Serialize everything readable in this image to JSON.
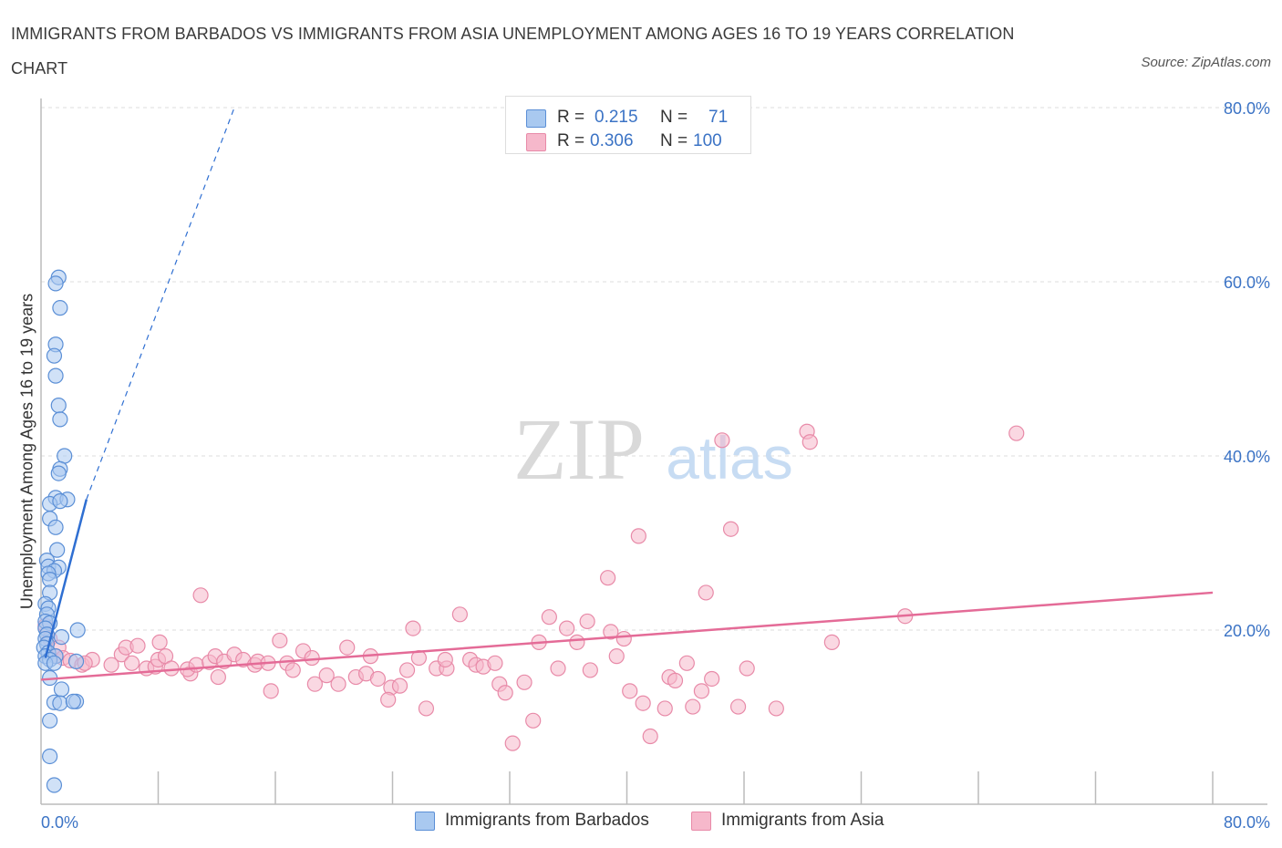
{
  "title": "IMMIGRANTS FROM BARBADOS VS IMMIGRANTS FROM ASIA UNEMPLOYMENT AMONG AGES 16 TO 19 YEARS CORRELATION CHART",
  "source": "Source: ZipAtlas.com",
  "watermark": {
    "zip": "ZIP",
    "atlas": "atlas"
  },
  "legend_top": {
    "series1": {
      "r_label": "R =",
      "r_value": "0.215",
      "n_label": "N =",
      "n_value": "71"
    },
    "series2": {
      "r_label": "R =",
      "r_value": "0.306",
      "n_label": "N =",
      "n_value": "100"
    }
  },
  "colors": {
    "barbados_fill": "#a9c9f0",
    "barbados_stroke": "#5b8fd6",
    "barbados_line": "#2f6fd2",
    "asia_fill": "#f6b8cb",
    "asia_stroke": "#e88aa8",
    "asia_line": "#e46b97",
    "axis_text": "#3b73c5",
    "grid": "#dddddd"
  },
  "chart_data": {
    "type": "scatter",
    "xlabel": "",
    "ylabel": "Unemployment Among Ages 16 to 19 years",
    "xlim": [
      0,
      80
    ],
    "ylim": [
      0,
      80
    ],
    "x_tick_labels": [
      "0.0%",
      "80.0%"
    ],
    "y_tick_labels": [
      "20.0%",
      "40.0%",
      "60.0%",
      "80.0%"
    ],
    "y_ticks": [
      20,
      40,
      60,
      80
    ],
    "grid": true,
    "legend": "bottom",
    "series": [
      {
        "name": "Immigrants from Barbados",
        "R": 0.215,
        "N": 71,
        "trend": {
          "x": [
            0.3,
            3.1
          ],
          "y": [
            16.8,
            35.0
          ],
          "dashed_to": [
            13.2,
            80.0
          ]
        },
        "points": [
          [
            1.2,
            60.5
          ],
          [
            1.0,
            59.8
          ],
          [
            1.3,
            57.0
          ],
          [
            1.0,
            52.8
          ],
          [
            0.9,
            51.5
          ],
          [
            1.0,
            49.2
          ],
          [
            1.2,
            45.8
          ],
          [
            1.3,
            44.2
          ],
          [
            1.6,
            40.0
          ],
          [
            1.3,
            38.5
          ],
          [
            1.2,
            38.0
          ],
          [
            1.0,
            35.2
          ],
          [
            1.8,
            35.0
          ],
          [
            0.6,
            34.5
          ],
          [
            1.3,
            34.8
          ],
          [
            0.6,
            32.8
          ],
          [
            1.0,
            31.8
          ],
          [
            1.1,
            29.2
          ],
          [
            0.4,
            28.0
          ],
          [
            0.5,
            27.3
          ],
          [
            1.2,
            27.2
          ],
          [
            0.9,
            26.8
          ],
          [
            0.5,
            26.5
          ],
          [
            0.6,
            25.8
          ],
          [
            0.6,
            24.3
          ],
          [
            0.3,
            23.0
          ],
          [
            0.5,
            22.5
          ],
          [
            0.4,
            21.8
          ],
          [
            0.3,
            21.0
          ],
          [
            0.6,
            20.8
          ],
          [
            0.3,
            20.2
          ],
          [
            2.5,
            20.0
          ],
          [
            0.4,
            19.5
          ],
          [
            0.3,
            19.0
          ],
          [
            1.4,
            19.2
          ],
          [
            0.4,
            18.4
          ],
          [
            0.2,
            18.0
          ],
          [
            0.5,
            17.4
          ],
          [
            0.3,
            17.0
          ],
          [
            1.0,
            17.0
          ],
          [
            0.6,
            16.6
          ],
          [
            0.3,
            16.2
          ],
          [
            0.9,
            16.2
          ],
          [
            2.4,
            16.4
          ],
          [
            0.6,
            14.5
          ],
          [
            1.4,
            13.2
          ],
          [
            0.9,
            11.7
          ],
          [
            1.3,
            11.6
          ],
          [
            2.4,
            11.8
          ],
          [
            2.2,
            11.8
          ],
          [
            0.6,
            9.6
          ],
          [
            0.6,
            5.5
          ],
          [
            0.9,
            2.2
          ]
        ]
      },
      {
        "name": "Immigrants from Asia",
        "R": 0.306,
        "N": 100,
        "trend": {
          "x": [
            0.0,
            80.0
          ],
          "y": [
            14.3,
            24.3
          ]
        },
        "points": [
          [
            0.3,
            20.5
          ],
          [
            0.6,
            19.0
          ],
          [
            1.2,
            18.0
          ],
          [
            1.0,
            17.0
          ],
          [
            1.5,
            16.8
          ],
          [
            2.0,
            16.5
          ],
          [
            2.8,
            16.0
          ],
          [
            3.5,
            16.6
          ],
          [
            3.0,
            16.2
          ],
          [
            4.8,
            16.0
          ],
          [
            5.5,
            17.2
          ],
          [
            5.8,
            18.0
          ],
          [
            6.2,
            16.2
          ],
          [
            6.6,
            18.2
          ],
          [
            7.2,
            15.6
          ],
          [
            7.8,
            15.8
          ],
          [
            8.0,
            16.6
          ],
          [
            8.1,
            18.6
          ],
          [
            8.5,
            17.0
          ],
          [
            8.9,
            15.6
          ],
          [
            10.2,
            15.0
          ],
          [
            10.0,
            15.5
          ],
          [
            10.6,
            16.0
          ],
          [
            10.9,
            24.0
          ],
          [
            11.5,
            16.3
          ],
          [
            11.9,
            17.0
          ],
          [
            12.1,
            14.6
          ],
          [
            12.5,
            16.4
          ],
          [
            13.2,
            17.2
          ],
          [
            13.8,
            16.6
          ],
          [
            14.6,
            16.0
          ],
          [
            14.8,
            16.4
          ],
          [
            15.5,
            16.2
          ],
          [
            15.7,
            13.0
          ],
          [
            16.3,
            18.8
          ],
          [
            16.8,
            16.2
          ],
          [
            17.2,
            15.4
          ],
          [
            17.9,
            17.6
          ],
          [
            18.5,
            16.8
          ],
          [
            18.7,
            13.8
          ],
          [
            19.5,
            14.8
          ],
          [
            20.9,
            18.0
          ],
          [
            20.3,
            13.8
          ],
          [
            21.5,
            14.6
          ],
          [
            22.2,
            15.0
          ],
          [
            22.5,
            17.0
          ],
          [
            23.0,
            14.4
          ],
          [
            23.9,
            13.4
          ],
          [
            23.7,
            12.0
          ],
          [
            24.5,
            13.6
          ],
          [
            25.0,
            15.4
          ],
          [
            25.4,
            20.2
          ],
          [
            25.8,
            16.8
          ],
          [
            26.3,
            11.0
          ],
          [
            27.0,
            15.6
          ],
          [
            27.7,
            15.6
          ],
          [
            27.6,
            16.6
          ],
          [
            28.6,
            21.8
          ],
          [
            29.3,
            16.6
          ],
          [
            29.7,
            16.0
          ],
          [
            30.2,
            15.8
          ],
          [
            31.0,
            16.2
          ],
          [
            31.3,
            13.8
          ],
          [
            31.7,
            12.8
          ],
          [
            32.2,
            7.0
          ],
          [
            33.0,
            14.0
          ],
          [
            33.6,
            9.6
          ],
          [
            34.0,
            18.6
          ],
          [
            34.7,
            21.5
          ],
          [
            35.3,
            15.6
          ],
          [
            35.9,
            20.2
          ],
          [
            36.6,
            18.6
          ],
          [
            37.3,
            21.0
          ],
          [
            37.5,
            15.4
          ],
          [
            38.7,
            26.0
          ],
          [
            38.9,
            19.8
          ],
          [
            39.3,
            17.0
          ],
          [
            39.8,
            19.0
          ],
          [
            40.2,
            13.0
          ],
          [
            40.8,
            30.8
          ],
          [
            41.1,
            11.6
          ],
          [
            41.6,
            7.8
          ],
          [
            42.6,
            11.0
          ],
          [
            42.9,
            14.6
          ],
          [
            43.3,
            14.2
          ],
          [
            44.5,
            11.2
          ],
          [
            44.1,
            16.2
          ],
          [
            45.1,
            13.0
          ],
          [
            45.4,
            24.3
          ],
          [
            45.8,
            14.4
          ],
          [
            46.5,
            41.8
          ],
          [
            47.1,
            31.6
          ],
          [
            47.6,
            11.2
          ],
          [
            48.2,
            15.6
          ],
          [
            50.2,
            11.0
          ],
          [
            52.3,
            42.8
          ],
          [
            52.5,
            41.6
          ],
          [
            54.0,
            18.6
          ],
          [
            59.0,
            21.6
          ],
          [
            66.6,
            42.6
          ]
        ]
      }
    ]
  },
  "bottom_legend": [
    "Immigrants from Barbados",
    "Immigrants from Asia"
  ]
}
